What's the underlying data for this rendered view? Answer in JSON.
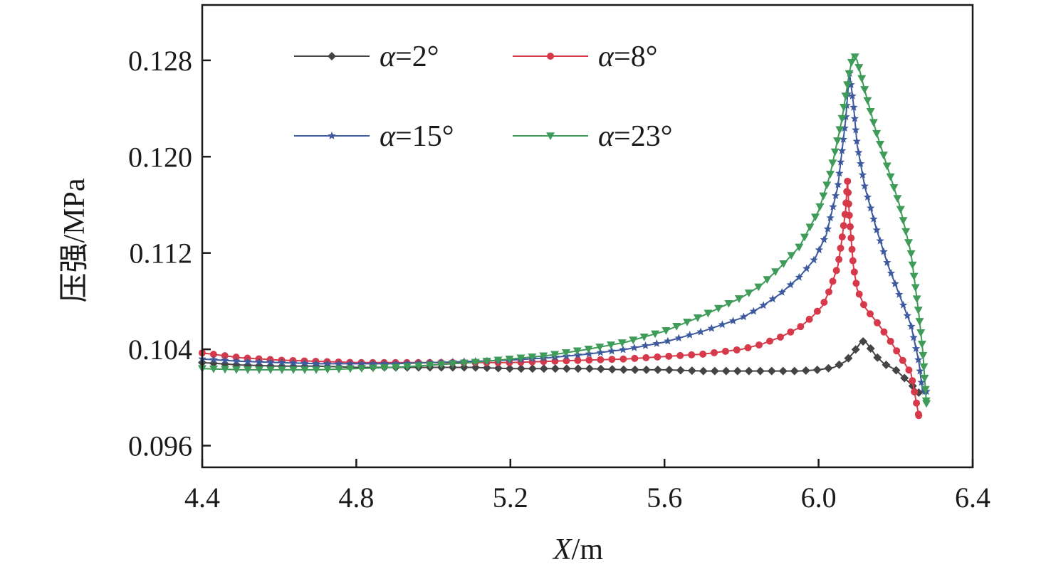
{
  "chart_data": {
    "type": "line",
    "title": "",
    "xlabel": {
      "italic": "X",
      "rest": "/m"
    },
    "ylabel": "压强/MPa",
    "xlim": [
      4.4,
      6.4
    ],
    "ylim": [
      0.0942,
      0.1326
    ],
    "xticks": [
      4.4,
      4.8,
      5.2,
      5.6,
      6.0,
      6.4
    ],
    "xtick_labels": [
      "4.4",
      "4.8",
      "5.2",
      "5.6",
      "6.0",
      "6.4"
    ],
    "yticks": [
      0.096,
      0.104,
      0.112,
      0.12,
      0.128
    ],
    "ytick_labels": [
      "0.096",
      "0.104",
      "0.112",
      "0.120",
      "0.128"
    ],
    "grid": false,
    "legend_position": "top-left",
    "series": [
      {
        "name": "α=2°",
        "color": "#444444",
        "marker": "diamond",
        "x": [
          4.4,
          4.5,
          4.6,
          4.7,
          4.8,
          4.9,
          5.0,
          5.1,
          5.2,
          5.3,
          5.4,
          5.5,
          5.6,
          5.7,
          5.8,
          5.9,
          5.95,
          6.0,
          6.04,
          6.07,
          6.09,
          6.11,
          6.12,
          6.13,
          6.15,
          6.17,
          6.2,
          6.22,
          6.24,
          6.26
        ],
        "values": [
          0.1029,
          0.1027,
          0.1026,
          0.1026,
          0.1025,
          0.1025,
          0.1025,
          0.1025,
          0.1024,
          0.1024,
          0.1024,
          0.1023,
          0.1023,
          0.1022,
          0.1022,
          0.1022,
          0.1022,
          0.1023,
          0.1025,
          0.103,
          0.1037,
          0.1046,
          0.1047,
          0.1043,
          0.1034,
          0.1028,
          0.1023,
          0.1017,
          0.1011,
          0.1004
        ]
      },
      {
        "name": "α=8°",
        "color": "#d63a4a",
        "marker": "circle",
        "x": [
          4.4,
          4.5,
          4.6,
          4.7,
          4.8,
          4.9,
          5.0,
          5.1,
          5.2,
          5.3,
          5.4,
          5.5,
          5.6,
          5.7,
          5.8,
          5.85,
          5.9,
          5.95,
          5.98,
          6.01,
          6.03,
          6.05,
          6.06,
          6.07,
          6.075,
          6.08,
          6.09,
          6.1,
          6.12,
          6.15,
          6.18,
          6.21,
          6.24,
          6.26
        ],
        "values": [
          0.1037,
          0.1033,
          0.1031,
          0.103,
          0.1029,
          0.1029,
          0.1029,
          0.1029,
          0.1029,
          0.103,
          0.1031,
          0.1032,
          0.1034,
          0.1036,
          0.104,
          0.1044,
          0.105,
          0.1058,
          0.1066,
          0.1076,
          0.109,
          0.1109,
          0.113,
          0.1155,
          0.118,
          0.115,
          0.111,
          0.109,
          0.1075,
          0.1063,
          0.105,
          0.1035,
          0.102,
          0.0985
        ]
      },
      {
        "name": "α=15°",
        "color": "#3d5a9e",
        "marker": "star",
        "x": [
          4.4,
          4.5,
          4.6,
          4.7,
          4.8,
          4.9,
          5.0,
          5.1,
          5.2,
          5.3,
          5.4,
          5.5,
          5.6,
          5.7,
          5.8,
          5.85,
          5.9,
          5.95,
          5.99,
          6.02,
          6.05,
          6.07,
          6.08,
          6.09,
          6.1,
          6.12,
          6.15,
          6.18,
          6.21,
          6.24,
          6.26,
          6.27,
          6.28
        ],
        "values": [
          0.1032,
          0.103,
          0.1029,
          0.1028,
          0.1028,
          0.1028,
          0.1029,
          0.103,
          0.1031,
          0.1033,
          0.1036,
          0.104,
          0.1046,
          0.1055,
          0.1066,
          0.1075,
          0.1086,
          0.11,
          0.1115,
          0.1135,
          0.1175,
          0.123,
          0.127,
          0.1245,
          0.121,
          0.1175,
          0.114,
          0.111,
          0.1085,
          0.106,
          0.103,
          0.1005,
          0.1005
        ]
      },
      {
        "name": "α=23°",
        "color": "#3e9b58",
        "marker": "triangle-down",
        "x": [
          4.4,
          4.5,
          4.6,
          4.7,
          4.8,
          4.9,
          5.0,
          5.1,
          5.2,
          5.3,
          5.4,
          5.5,
          5.6,
          5.7,
          5.8,
          5.85,
          5.9,
          5.95,
          6.0,
          6.03,
          6.06,
          6.08,
          6.09,
          6.1,
          6.12,
          6.15,
          6.18,
          6.21,
          6.24,
          6.26,
          6.27,
          6.28
        ],
        "values": [
          0.1024,
          0.1023,
          0.1023,
          0.1023,
          0.1024,
          0.1025,
          0.1027,
          0.1029,
          0.1032,
          0.1035,
          0.104,
          0.1046,
          0.1055,
          0.1068,
          0.1083,
          0.1093,
          0.1108,
          0.1125,
          0.1155,
          0.1185,
          0.123,
          0.127,
          0.1285,
          0.128,
          0.1255,
          0.122,
          0.119,
          0.116,
          0.112,
          0.107,
          0.104,
          0.0995
        ]
      }
    ]
  }
}
